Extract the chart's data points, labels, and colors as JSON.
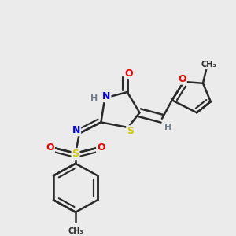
{
  "bg_color": "#ebebeb",
  "bond_color": "#2a2a2a",
  "bond_width": 1.8,
  "dbo": 0.018,
  "atom_colors": {
    "C": "#2a2a2a",
    "N": "#0000ee",
    "O": "#ee0000",
    "S": "#cccc00",
    "H": "#708090"
  },
  "fs": 9
}
